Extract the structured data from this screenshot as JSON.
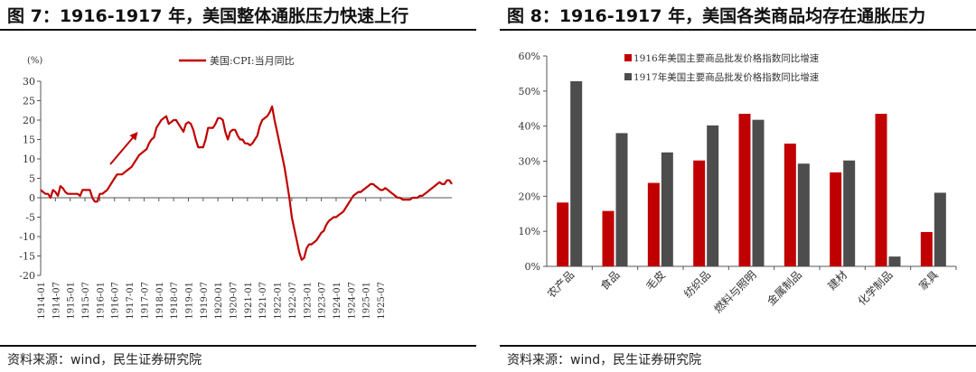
{
  "left": {
    "title": "图 7：1916-1917 年，美国整体通胀压力快速上行",
    "source": "资料来源：wind，民生证券研究院",
    "chart_data": {
      "type": "line",
      "unit_label": "(%)",
      "ylim": [
        -20,
        30
      ],
      "yticks": [
        -20,
        -15,
        -10,
        -5,
        0,
        5,
        10,
        15,
        20,
        25,
        30
      ],
      "x_tick_labels": [
        "1914-01",
        "1914-07",
        "1915-01",
        "1915-07",
        "1916-01",
        "1916-07",
        "1917-01",
        "1917-07",
        "1918-01",
        "1918-07",
        "1919-01",
        "1919-07",
        "1920-01",
        "1920-07",
        "1921-01",
        "1921-07",
        "1922-01",
        "1922-07",
        "1923-01",
        "1923-07",
        "1924-01",
        "1924-07",
        "1925-01",
        "1925-07"
      ],
      "start": "1914-01",
      "series": [
        {
          "name": "美国:CPI:当月同比",
          "color": "#c00000",
          "values": [
            2,
            1.5,
            1,
            1,
            0,
            2,
            1.5,
            0.5,
            3,
            2.5,
            1.5,
            1,
            1,
            1,
            1,
            1,
            0.5,
            2,
            2,
            2,
            2,
            0,
            -1,
            -1,
            1,
            1,
            1.5,
            2,
            3,
            4,
            5,
            6,
            6,
            6,
            6.5,
            7,
            7.5,
            8,
            9,
            10,
            11,
            11.5,
            12,
            12.5,
            14,
            15,
            15.5,
            18,
            19,
            20,
            20.5,
            21,
            19,
            19.5,
            20,
            20,
            19,
            18,
            17,
            19,
            19.5,
            19,
            17.5,
            15,
            13,
            13,
            13,
            15,
            18,
            18,
            18,
            19,
            20.5,
            20.5,
            20,
            17,
            15,
            17,
            17.5,
            17.5,
            16,
            15,
            15,
            14,
            14,
            13.5,
            14,
            15,
            16,
            18.5,
            20,
            20.5,
            21,
            22,
            23.5,
            20,
            17,
            14,
            11,
            8,
            4,
            0,
            -5,
            -8,
            -11,
            -14,
            -16,
            -15.5,
            -13,
            -12,
            -12,
            -11.5,
            -11,
            -10,
            -9,
            -8.5,
            -7,
            -6,
            -5.5,
            -5,
            -5,
            -4.5,
            -4,
            -3.5,
            -2.5,
            -1.5,
            -0.5,
            0.5,
            1,
            1.5,
            1.5,
            2,
            2.5,
            3,
            3.5,
            3.5,
            3,
            2.5,
            2,
            2,
            2.5,
            2,
            1.5,
            1,
            0.5,
            0,
            0,
            -0.5,
            -0.5,
            -0.5,
            -0.5,
            0,
            0,
            0,
            0.5,
            0.5,
            1,
            1.5,
            2,
            2.5,
            3,
            3.5,
            4,
            3.5,
            3.5,
            4.5,
            4.5,
            3.5
          ]
        }
      ],
      "grid": false,
      "legend": "top-center",
      "annotation": "upward-arrow"
    }
  },
  "right": {
    "title": "图 8：1916-1917 年，美国各类商品均存在通胀压力",
    "source": "资料来源：wind，民生证券研究院",
    "chart_data": {
      "type": "bar",
      "categories": [
        "农产品",
        "食品",
        "毛皮",
        "纺织品",
        "燃料与照明",
        "金属制品",
        "建材",
        "化学制品",
        "家具"
      ],
      "ylim": [
        0,
        60
      ],
      "yticks": [
        0,
        10,
        20,
        30,
        40,
        50,
        60
      ],
      "y_unit": "%",
      "series": [
        {
          "name": "1916年美国主要商品批发价格指数同比增速",
          "color": "#c00000",
          "values": [
            18.2,
            15.8,
            23.8,
            30.2,
            43.5,
            35.0,
            26.8,
            43.5,
            9.8
          ]
        },
        {
          "name": "1917年美国主要商品批发价格指数同比增速",
          "color": "#4d4d4d",
          "values": [
            52.8,
            38.0,
            32.5,
            40.2,
            41.8,
            29.3,
            30.2,
            2.8,
            21.0
          ]
        }
      ],
      "grid": false,
      "legend": "top-left"
    }
  }
}
